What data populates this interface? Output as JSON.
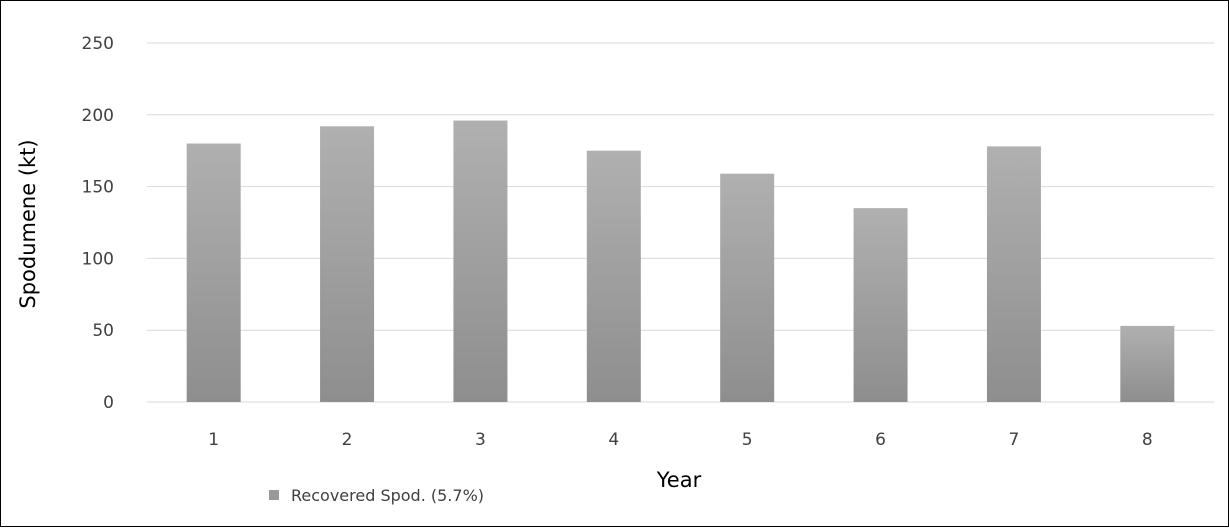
{
  "chart_data": {
    "type": "bar",
    "categories": [
      "1",
      "2",
      "3",
      "4",
      "5",
      "6",
      "7",
      "8"
    ],
    "series": [
      {
        "name": "Recovered Spod. (5.7%)",
        "values": [
          180,
          192,
          196,
          175,
          159,
          135,
          178,
          53
        ]
      }
    ],
    "xlabel": "Year",
    "ylabel": "Spodumene (kt)",
    "ylim": [
      0,
      250
    ],
    "yticks": [
      "0",
      "50",
      "100",
      "150",
      "200",
      "250"
    ],
    "grid": true,
    "legend_position": "bottom-left",
    "colors": {
      "bar_top": "#b0b0b0",
      "bar_bottom": "#8e8e8e",
      "grid": "#d9d9d9",
      "legend_marker": "#999999"
    }
  }
}
